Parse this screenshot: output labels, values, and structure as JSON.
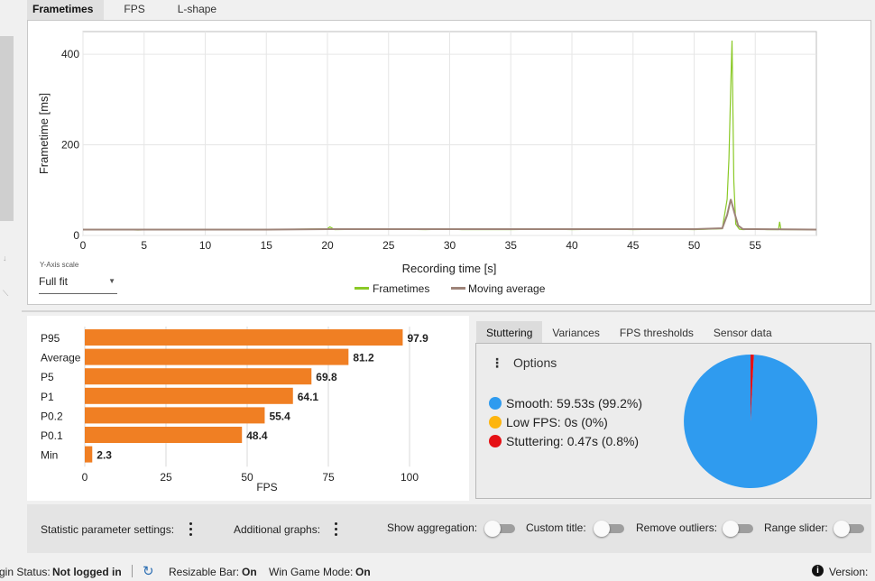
{
  "top_tabs": [
    "Frametimes",
    "FPS",
    "L-shape"
  ],
  "frametime_chart": {
    "xlabel": "Recording time [s]",
    "ylabel": "Frametime [ms]",
    "x_ticks": [
      "0",
      "5",
      "10",
      "15",
      "20",
      "25",
      "30",
      "35",
      "40",
      "45",
      "50",
      "55"
    ],
    "y_ticks": [
      "0",
      "200",
      "400"
    ],
    "legend": [
      "Frametimes",
      "Moving average"
    ],
    "colors": {
      "frametimes": "#8ac926",
      "moving_average": "#9e8479"
    }
  },
  "y_axis_scale": {
    "label": "Y-Axis scale",
    "value": "Full fit"
  },
  "chart_data": [
    {
      "type": "line",
      "title": "",
      "xlabel": "Recording time [s]",
      "ylabel": "Frametime [ms]",
      "xlim": [
        0,
        60
      ],
      "ylim": [
        0,
        450
      ],
      "legend": "bottom",
      "series": [
        {
          "name": "Frametimes",
          "x": [
            0,
            1,
            3,
            4.5,
            6,
            9,
            12,
            15,
            18,
            20,
            20.2,
            20.6,
            25,
            28,
            30,
            31,
            35,
            38,
            40,
            43,
            45,
            48,
            50,
            52.3,
            52.7,
            52.85,
            53.0,
            53.1,
            53.25,
            53.4,
            53.7,
            54,
            55,
            56,
            56.9,
            57,
            57.1,
            58,
            60
          ],
          "y": [
            13,
            13,
            13,
            12,
            13,
            13,
            13,
            13,
            14,
            15,
            19,
            13,
            14,
            13,
            14,
            13,
            13,
            14,
            13,
            14,
            13,
            14,
            13,
            15,
            80,
            170,
            330,
            430,
            120,
            25,
            14,
            13,
            14,
            13,
            13,
            30,
            13,
            13,
            13
          ]
        },
        {
          "name": "Moving average",
          "x": [
            0,
            5,
            10,
            15,
            20,
            25,
            30,
            35,
            40,
            45,
            50,
            52.3,
            52.7,
            53.0,
            53.3,
            53.6,
            54,
            55,
            60
          ],
          "y": [
            13,
            13,
            13,
            13,
            14,
            14,
            14,
            14,
            14,
            14,
            14,
            16,
            45,
            80,
            50,
            22,
            14,
            14,
            13
          ]
        }
      ]
    },
    {
      "type": "bar",
      "orientation": "horizontal",
      "title": "",
      "xlabel": "FPS",
      "ylabel": "",
      "categories": [
        "P95",
        "Average",
        "P5",
        "P1",
        "P0.2",
        "P0.1",
        "Min"
      ],
      "values": [
        97.9,
        81.2,
        69.8,
        64.1,
        55.4,
        48.4,
        2.3
      ],
      "value_labels": [
        "97.9",
        "81.2",
        "69.8",
        "64.1",
        "55.4",
        "48.4",
        "2.3"
      ],
      "x_ticks": [
        "0",
        "25",
        "50",
        "75",
        "100"
      ],
      "xlim": [
        0,
        100
      ],
      "color": "#f07f23"
    },
    {
      "type": "pie",
      "title": "",
      "labels": [
        "Smooth",
        "Low FPS",
        "Stuttering"
      ],
      "values": [
        99.2,
        0,
        0.8
      ],
      "colors": [
        "#2f9bef",
        "#fdb50f",
        "#e51015"
      ]
    }
  ],
  "right_tabs": [
    "Stuttering",
    "Variances",
    "FPS thresholds",
    "Sensor data"
  ],
  "stuttering": {
    "options_label": "Options",
    "items": [
      {
        "label": "Smooth:",
        "value": "59.53s (99.2%)",
        "color": "#2f9bef"
      },
      {
        "label": "Low FPS:",
        "value": "0s (0%)",
        "color": "#fdb50f"
      },
      {
        "label": "Stuttering:",
        "value": "0.47s (0.8%)",
        "color": "#e51015"
      }
    ]
  },
  "bottom_controls": {
    "statistic_settings": "Statistic parameter settings:",
    "additional_graphs": "Additional graphs:",
    "show_aggregation": "Show aggregation:",
    "custom_title": "Custom title:",
    "remove_outliers": "Remove outliers:",
    "range_slider": "Range slider:"
  },
  "status_bar": {
    "login_label": "gin Status:",
    "login_value": "Not logged in",
    "resizable_label": "Resizable Bar:",
    "resizable_value": "On",
    "gamemode_label": "Win Game Mode:",
    "gamemode_value": "On",
    "version_label": "Version:"
  }
}
